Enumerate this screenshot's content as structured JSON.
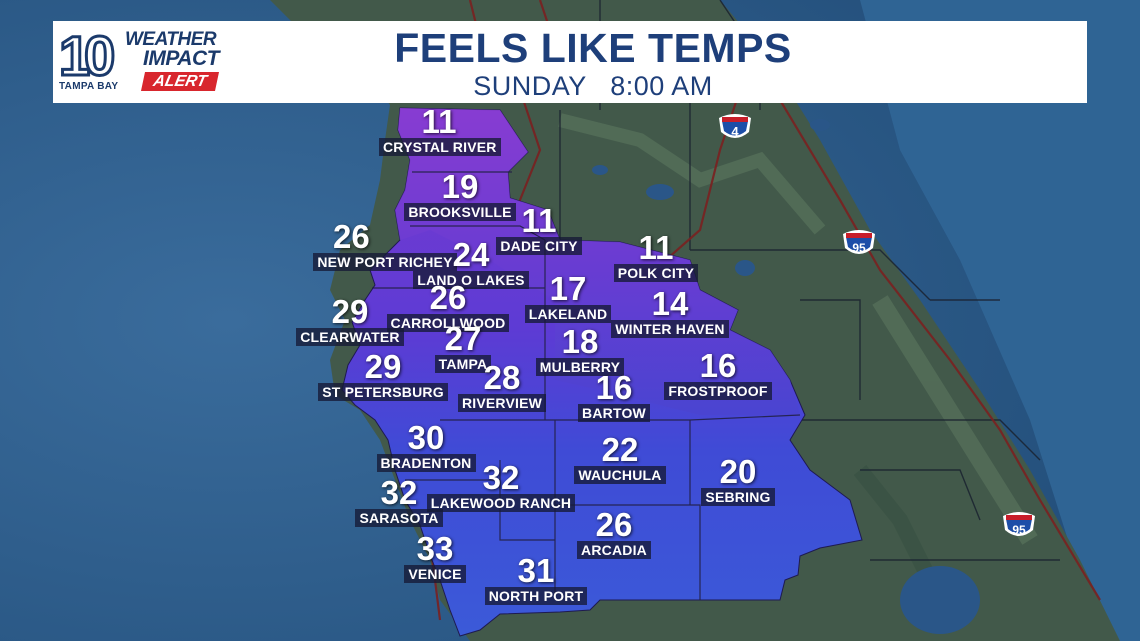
{
  "header": {
    "title": "FEELS LIKE TEMPS",
    "subtitle": "SUNDAY   8:00 AM",
    "logo": {
      "number": "10",
      "station": "TAMPA BAY",
      "line1": "WEATHER",
      "line2": "IMPACT",
      "badge": "ALERT"
    }
  },
  "highways": [
    "4",
    "95",
    "95"
  ],
  "colors": {
    "water": "#2c5a86",
    "land": "#3f5a4a",
    "purple": "#7a3ad0",
    "blue": "#3b4ed8",
    "banner_text": "#1e3f7a",
    "alert_red": "#d8262d"
  },
  "cities": [
    {
      "name": "CRYSTAL RIVER",
      "temp": "11"
    },
    {
      "name": "BROOKSVILLE",
      "temp": "19"
    },
    {
      "name": "DADE CITY",
      "temp": "11"
    },
    {
      "name": "NEW PORT RICHEY",
      "temp": "26"
    },
    {
      "name": "LAND O LAKES",
      "temp": "24"
    },
    {
      "name": "POLK CITY",
      "temp": "11"
    },
    {
      "name": "LAKELAND",
      "temp": "17"
    },
    {
      "name": "CLEARWATER",
      "temp": "29"
    },
    {
      "name": "CARROLLWOOD",
      "temp": "26"
    },
    {
      "name": "WINTER HAVEN",
      "temp": "14"
    },
    {
      "name": "TAMPA",
      "temp": "27"
    },
    {
      "name": "MULBERRY",
      "temp": "18"
    },
    {
      "name": "ST PETERSBURG",
      "temp": "29"
    },
    {
      "name": "RIVERVIEW",
      "temp": "28"
    },
    {
      "name": "BARTOW",
      "temp": "16"
    },
    {
      "name": "FROSTPROOF",
      "temp": "16"
    },
    {
      "name": "BRADENTON",
      "temp": "30"
    },
    {
      "name": "WAUCHULA",
      "temp": "22"
    },
    {
      "name": "LAKEWOOD RANCH",
      "temp": "32"
    },
    {
      "name": "SEBRING",
      "temp": "20"
    },
    {
      "name": "SARASOTA",
      "temp": "32"
    },
    {
      "name": "ARCADIA",
      "temp": "26"
    },
    {
      "name": "VENICE",
      "temp": "33"
    },
    {
      "name": "NORTH PORT",
      "temp": "31"
    }
  ]
}
